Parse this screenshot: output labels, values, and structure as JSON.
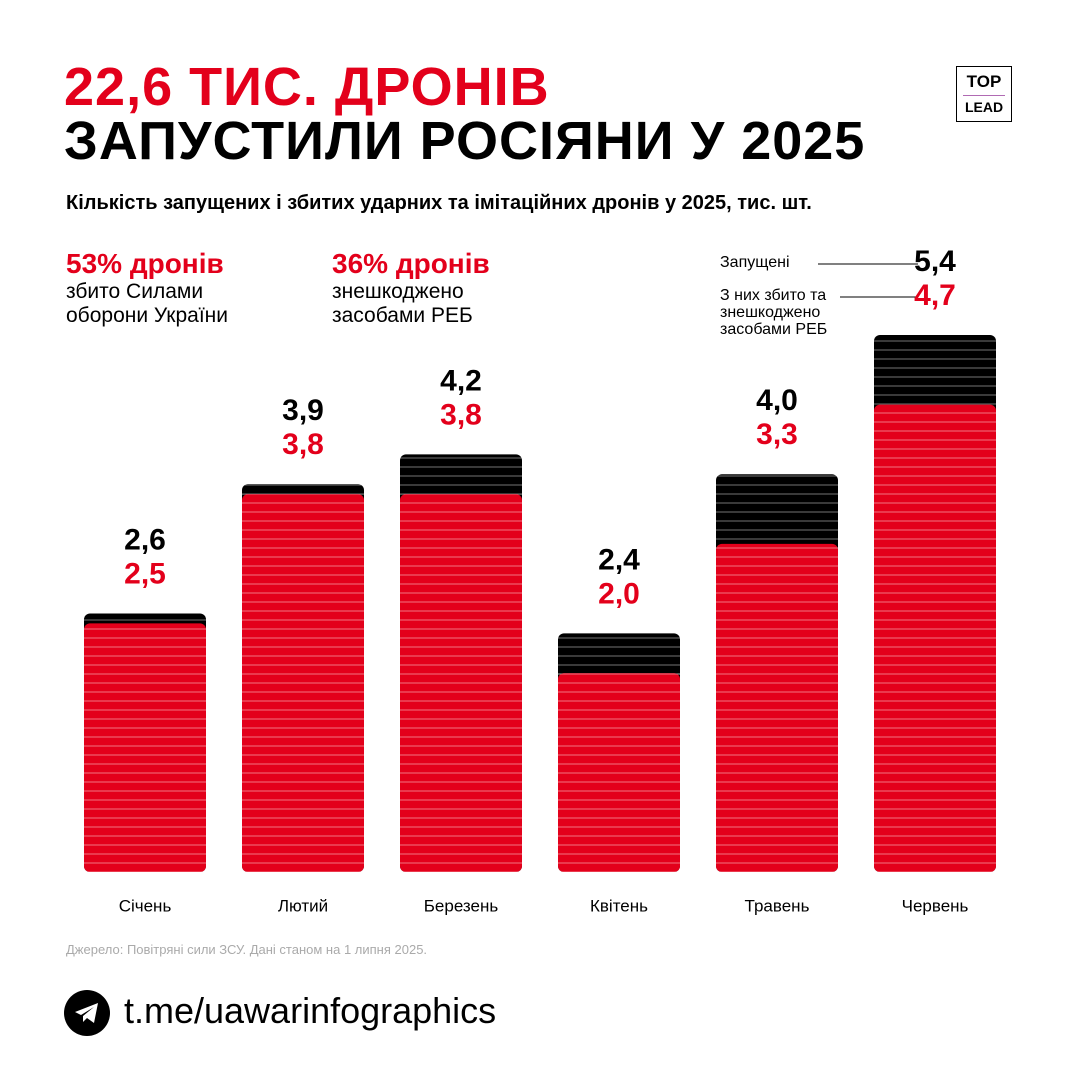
{
  "header": {
    "title_line1": "22,6 ТИС. ДРОНІВ",
    "title_line2": "ЗАПУСТИЛИ РОСІЯНИ У 2025",
    "logo_top": "TOP",
    "logo_bottom": "LEAD"
  },
  "chart_data": {
    "type": "bar",
    "subtitle": "Кількість запущених і збитих ударних та імітаційних дронів у 2025, тис. шт.",
    "categories": [
      "Січень",
      "Лютий",
      "Березень",
      "Квітень",
      "Травень",
      "Червень"
    ],
    "series": [
      {
        "name": "Запущені",
        "color": "#000000",
        "values": [
          2.6,
          3.9,
          4.2,
          2.4,
          4.0,
          5.4
        ],
        "value_labels": [
          "2,6",
          "3,9",
          "4,2",
          "2,4",
          "4,0",
          "5,4"
        ]
      },
      {
        "name": "З них збито та знешкоджено засобами РЕБ",
        "color": "#e3001b",
        "values": [
          2.5,
          3.8,
          3.8,
          2.0,
          3.3,
          4.7
        ],
        "value_labels": [
          "2,5",
          "3,8",
          "3,8",
          "2,0",
          "3,3",
          "4,7"
        ]
      }
    ],
    "annotations": [
      {
        "headline": "53% дронів",
        "text": "збито Силами оборони України"
      },
      {
        "headline": "36% дронів",
        "text": "знешкоджено засобами РЕБ"
      }
    ],
    "source": "Джерело: Повітряні сили ЗСУ. Дані станом на 1 липня 2025."
  },
  "footer": {
    "link": "t.me/uawarinfographics"
  }
}
